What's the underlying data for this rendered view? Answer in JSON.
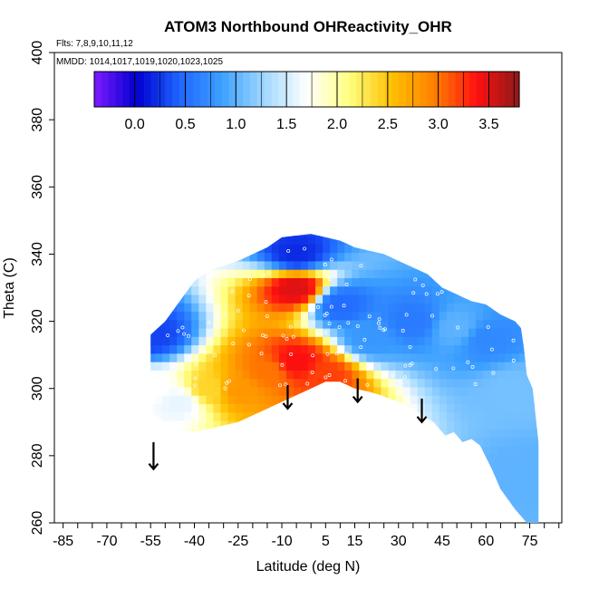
{
  "chart_data": {
    "type": "heatmap",
    "title": "ATOM3 Northbound OHReactivity_OHR",
    "subtitle_flights": "Flts: 7,8,9,10,11,12",
    "subtitle_dates": "MMDD: 1014,1017,1019,1020,1023,1025",
    "xlabel": "Latitude (deg N)",
    "ylabel": "Theta (C)",
    "xlim": [
      -85,
      85
    ],
    "ylim": [
      260,
      400
    ],
    "x_ticks": [
      "-85",
      "-70",
      "-55",
      "-40",
      "-25",
      "-10",
      "5",
      "15",
      "30",
      "45",
      "60",
      "75"
    ],
    "x_tick_values": [
      -85,
      -70,
      -55,
      -40,
      -25,
      -10,
      5,
      15,
      30,
      45,
      60,
      75
    ],
    "y_ticks": [
      "260",
      "280",
      "300",
      "320",
      "340",
      "360",
      "380",
      "400"
    ],
    "y_tick_values": [
      260,
      280,
      300,
      320,
      340,
      360,
      380,
      400
    ],
    "colorbar": {
      "range": [
        -0.4,
        3.8
      ],
      "tick_labels": [
        "0.0",
        "0.5",
        "1.0",
        "1.5",
        "2.0",
        "2.5",
        "3.0",
        "3.5"
      ],
      "tick_values": [
        0,
        0.5,
        1.0,
        1.5,
        2.0,
        2.5,
        3.0,
        3.5
      ],
      "colors": [
        "#7e1bff",
        "#0000d0",
        "#1e64ff",
        "#3ca0ff",
        "#a0d8ff",
        "#ffffff",
        "#ffff80",
        "#ffc000",
        "#ff8000",
        "#ff1010",
        "#8b1a1a"
      ]
    },
    "field_samples": [
      {
        "x": -55,
        "y": 316,
        "value": 0.3
      },
      {
        "x": -55,
        "y": 300,
        "value": 1.7
      },
      {
        "x": -45,
        "y": 296,
        "value": 1.6
      },
      {
        "x": -35,
        "y": 300,
        "value": 2.4
      },
      {
        "x": -25,
        "y": 300,
        "value": 2.8
      },
      {
        "x": -15,
        "y": 305,
        "value": 3.0
      },
      {
        "x": -5,
        "y": 308,
        "value": 3.4
      },
      {
        "x": 5,
        "y": 304,
        "value": 3.2
      },
      {
        "x": -5,
        "y": 330,
        "value": 3.5
      },
      {
        "x": -5,
        "y": 340,
        "value": 0.2
      },
      {
        "x": 10,
        "y": 325,
        "value": 0.5
      },
      {
        "x": 20,
        "y": 315,
        "value": 0.8
      },
      {
        "x": 35,
        "y": 320,
        "value": 0.6
      },
      {
        "x": 50,
        "y": 318,
        "value": 1.0
      },
      {
        "x": 60,
        "y": 315,
        "value": 0.7
      },
      {
        "x": 70,
        "y": 300,
        "value": 1.1
      },
      {
        "x": 75,
        "y": 275,
        "value": 1.0
      }
    ],
    "arrows": [
      {
        "x": -54,
        "y_top": 284,
        "y_bottom": 276
      },
      {
        "x": -8,
        "y_top": 301,
        "y_bottom": 294
      },
      {
        "x": 16,
        "y_top": 303,
        "y_bottom": 296
      },
      {
        "x": 38,
        "y_top": 297,
        "y_bottom": 290
      }
    ]
  }
}
